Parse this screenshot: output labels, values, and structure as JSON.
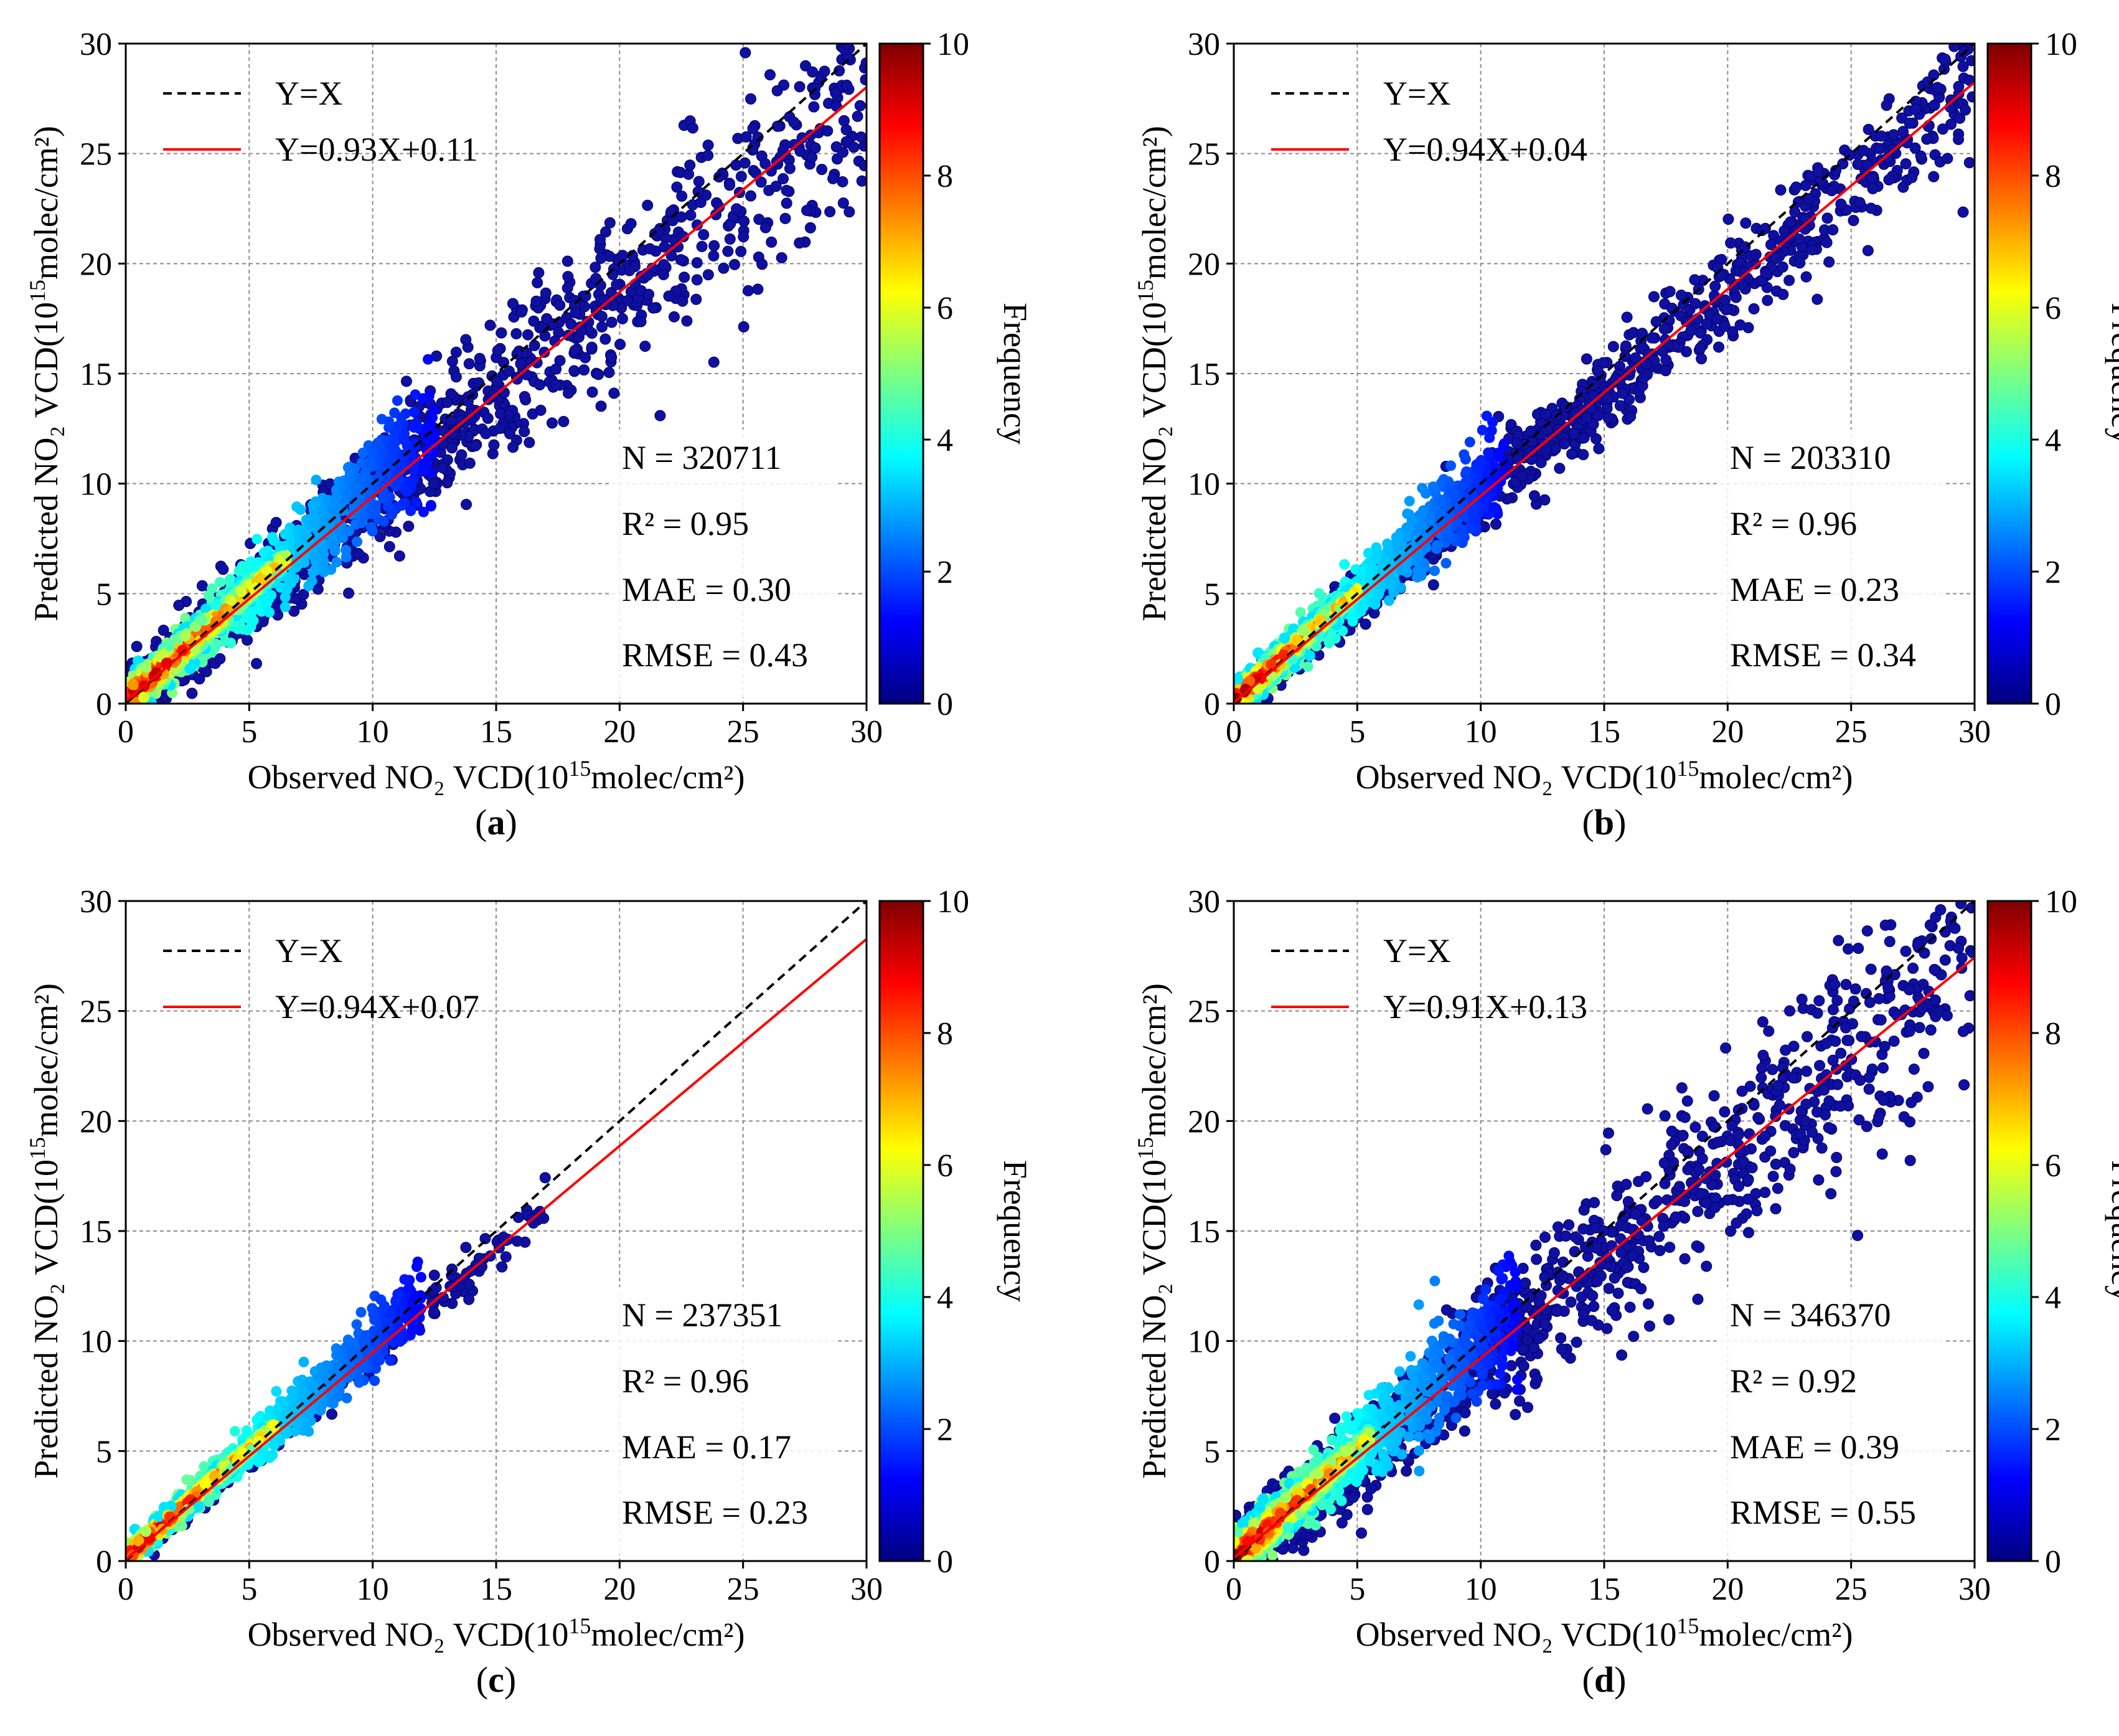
{
  "figure": {
    "colorbar_label": "Frequency",
    "colorbar_ticks": [
      "0",
      "2",
      "4",
      "6",
      "8",
      "10"
    ],
    "colorbar_range": [
      0,
      10
    ],
    "colormap": [
      "#00007f",
      "#0000ff",
      "#007fff",
      "#00ffff",
      "#7fff7f",
      "#ffff00",
      "#ff7f00",
      "#ff0000",
      "#7f0000"
    ],
    "x_axis_prefix": "Observed NO₂ VCD(10",
    "y_axis_prefix": "Predicted NO₂ VCD(10",
    "axis_exponent": "15",
    "axis_suffix": "molec/cm²)",
    "fit_line_color": "#ff0000",
    "identity_line_color": "#000000"
  },
  "chart_data": [
    {
      "type": "scatter",
      "panel": "(a)",
      "panel_letter": "a",
      "xlim": [
        0,
        30
      ],
      "ylim": [
        0,
        30
      ],
      "xticks": [
        0,
        5,
        10,
        15,
        20,
        25,
        30
      ],
      "yticks": [
        0,
        5,
        10,
        15,
        20,
        25,
        30
      ],
      "legend": [
        "Y=X",
        "Y=0.93X+0.11"
      ],
      "fit": {
        "slope": 0.93,
        "intercept": 0.11
      },
      "identity": {
        "slope": 1,
        "intercept": 0
      },
      "stats": {
        "n": "N = 320711",
        "r2": "R² = 0.95",
        "mae": "MAE = 0.30",
        "rmse": "RMSE = 0.43"
      },
      "density": {
        "max_x": 6.5,
        "spread": 1.9,
        "scatter_max": 30,
        "noise": 2.0
      },
      "grid": true
    },
    {
      "type": "scatter",
      "panel": "(b)",
      "panel_letter": "b",
      "xlim": [
        0,
        30
      ],
      "ylim": [
        0,
        30
      ],
      "xticks": [
        0,
        5,
        10,
        15,
        20,
        25,
        30
      ],
      "yticks": [
        0,
        5,
        10,
        15,
        20,
        25,
        30
      ],
      "legend": [
        "Y=X",
        "Y=0.94X+0.04"
      ],
      "fit": {
        "slope": 0.94,
        "intercept": 0.04
      },
      "identity": {
        "slope": 1,
        "intercept": 0
      },
      "stats": {
        "n": "N = 203310",
        "r2": "R² = 0.96",
        "mae": "MAE = 0.23",
        "rmse": "RMSE = 0.34"
      },
      "density": {
        "max_x": 5.0,
        "spread": 1.5,
        "scatter_max": 30,
        "noise": 1.2
      },
      "grid": true
    },
    {
      "type": "scatter",
      "panel": "(c)",
      "panel_letter": "c",
      "xlim": [
        0,
        30
      ],
      "ylim": [
        0,
        30
      ],
      "xticks": [
        0,
        5,
        10,
        15,
        20,
        25,
        30
      ],
      "yticks": [
        0,
        5,
        10,
        15,
        20,
        25,
        30
      ],
      "legend": [
        "Y=X",
        "Y=0.94X+0.07"
      ],
      "fit": {
        "slope": 0.94,
        "intercept": 0.07
      },
      "identity": {
        "slope": 1,
        "intercept": 0
      },
      "stats": {
        "n": "N = 237351",
        "r2": "R² = 0.96",
        "mae": "MAE = 0.17",
        "rmse": "RMSE = 0.23"
      },
      "density": {
        "max_x": 6.0,
        "spread": 1.1,
        "scatter_max": 17,
        "noise": 0.8
      },
      "grid": true
    },
    {
      "type": "scatter",
      "panel": "(d)",
      "panel_letter": "d",
      "xlim": [
        0,
        30
      ],
      "ylim": [
        0,
        30
      ],
      "xticks": [
        0,
        5,
        10,
        15,
        20,
        25,
        30
      ],
      "yticks": [
        0,
        5,
        10,
        15,
        20,
        25,
        30
      ],
      "legend": [
        "Y=X",
        "Y=0.91X+0.13"
      ],
      "fit": {
        "slope": 0.91,
        "intercept": 0.13
      },
      "identity": {
        "slope": 1,
        "intercept": 0
      },
      "stats": {
        "n": "N = 346370",
        "r2": "R² = 0.92",
        "mae": "MAE = 0.39",
        "rmse": "RMSE = 0.55"
      },
      "density": {
        "max_x": 5.5,
        "spread": 2.2,
        "scatter_max": 30,
        "noise": 2.4
      },
      "grid": true
    }
  ]
}
